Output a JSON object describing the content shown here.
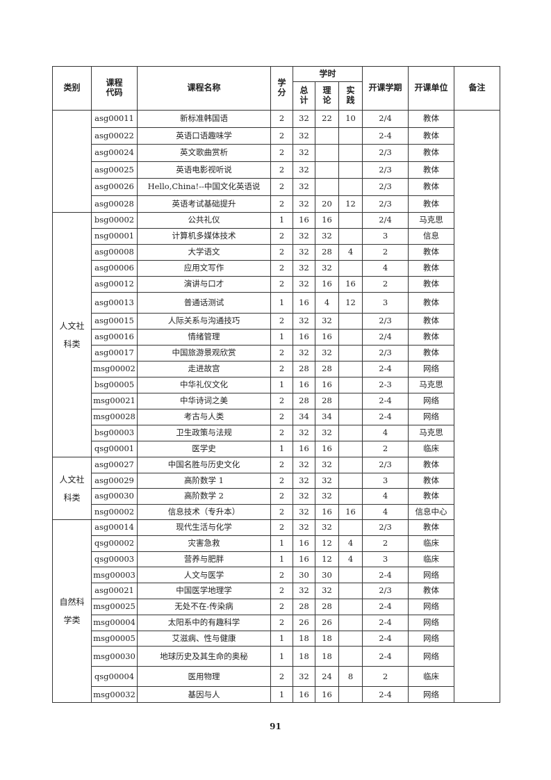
{
  "header": {
    "category": "类别",
    "code": "课程代码",
    "name": "课程名称",
    "credit": "学分",
    "hours": "学时",
    "hours_total": "总计",
    "hours_theory": "理论",
    "hours_practice": "实践",
    "semester": "开课学期",
    "unit": "开课单位",
    "remark": "备注"
  },
  "groups": [
    {
      "category": "",
      "rows": [
        [
          "asg00011",
          "新标准韩国语",
          "2",
          "32",
          "22",
          "10",
          "2/4",
          "教体"
        ],
        [
          "asg00022",
          "英语口语趣味学",
          "2",
          "32",
          "",
          "",
          "2-4",
          "教体"
        ],
        [
          "asg00024",
          "英文歌曲赏析",
          "2",
          "32",
          "",
          "",
          "2/3",
          "教体"
        ],
        [
          "asg00025",
          "英语电影视听说",
          "2",
          "32",
          "",
          "",
          "2/3",
          "教体"
        ],
        [
          "asg00026",
          "Hello,China!--中国文化英语说",
          "2",
          "32",
          "",
          "",
          "2/3",
          "教体"
        ],
        [
          "asg00028",
          "英语考试基础提升",
          "2",
          "32",
          "20",
          "12",
          "2/3",
          "教体"
        ]
      ]
    },
    {
      "category": "人文社科类",
      "rows": [
        [
          "bsg00002",
          "公共礼仪",
          "1",
          "16",
          "16",
          "",
          "2/4",
          "马克思"
        ],
        [
          "nsg00001",
          "计算机多媒体技术",
          "2",
          "32",
          "32",
          "",
          "3",
          "信息"
        ],
        [
          "asg00008",
          "大学语文",
          "2",
          "32",
          "28",
          "4",
          "2",
          "教体"
        ],
        [
          "asg00006",
          "应用文写作",
          "2",
          "32",
          "32",
          "",
          "4",
          "教体"
        ],
        [
          "asg00012",
          "演讲与口才",
          "2",
          "32",
          "16",
          "16",
          "2",
          "教体"
        ],
        [
          "asg00013",
          "普通话测试",
          "1",
          "16",
          "4",
          "12",
          "3",
          "教体"
        ],
        [
          "asg00015",
          "人际关系与沟通技巧",
          "2",
          "32",
          "32",
          "",
          "2/3",
          "教体"
        ],
        [
          "asg00016",
          "情绪管理",
          "1",
          "16",
          "16",
          "",
          "2/4",
          "教体"
        ],
        [
          "asg00017",
          "中国旅游景观欣赏",
          "2",
          "32",
          "32",
          "",
          "2/3",
          "教体"
        ],
        [
          "msg00002",
          "走进故宫",
          "2",
          "28",
          "28",
          "",
          "2-4",
          "网络"
        ],
        [
          "bsg00005",
          "中华礼仪文化",
          "1",
          "16",
          "16",
          "",
          "2-3",
          "马克思"
        ],
        [
          "msg00021",
          "中华诗词之美",
          "2",
          "28",
          "28",
          "",
          "2-4",
          "网络"
        ],
        [
          "msg00028",
          "考古与人类",
          "2",
          "34",
          "34",
          "",
          "2-4",
          "网络"
        ],
        [
          "bsg00003",
          "卫生政策与法规",
          "2",
          "32",
          "32",
          "",
          "4",
          "马克思"
        ],
        [
          "qsg00001",
          "医学史",
          "1",
          "16",
          "16",
          "",
          "2",
          "临床"
        ]
      ]
    },
    {
      "category": "人文社科类",
      "rows": [
        [
          "asg00027",
          "中国名胜与历史文化",
          "2",
          "32",
          "32",
          "",
          "2/3",
          "教体"
        ],
        [
          "asg00029",
          "高阶数学 1",
          "2",
          "32",
          "32",
          "",
          "3",
          "教体"
        ],
        [
          "asg00030",
          "高阶数学 2",
          "2",
          "32",
          "32",
          "",
          "4",
          "教体"
        ],
        [
          "nsg00002",
          "信息技术（专升本）",
          "2",
          "32",
          "16",
          "16",
          "4",
          "信息中心"
        ]
      ]
    },
    {
      "category": "自然科学类",
      "rows": [
        [
          "asg00014",
          "现代生活与化学",
          "2",
          "32",
          "32",
          "",
          "2/3",
          "教体"
        ],
        [
          "qsg00002",
          "灾害急救",
          "1",
          "16",
          "12",
          "4",
          "2",
          "临床"
        ],
        [
          "qsg00003",
          "营养与肥胖",
          "1",
          "16",
          "12",
          "4",
          "3",
          "临床"
        ],
        [
          "msg00003",
          "人文与医学",
          "2",
          "30",
          "30",
          "",
          "2-4",
          "网络"
        ],
        [
          "asg00021",
          "中国医学地理学",
          "2",
          "32",
          "32",
          "",
          "2/3",
          "教体"
        ],
        [
          "msg00025",
          "无处不在-传染病",
          "2",
          "28",
          "28",
          "",
          "2-4",
          "网络"
        ],
        [
          "msg00004",
          "太阳系中的有趣科学",
          "2",
          "26",
          "26",
          "",
          "2-4",
          "网络"
        ],
        [
          "msg00005",
          "艾滋病、性与健康",
          "1",
          "18",
          "18",
          "",
          "2-4",
          "网络"
        ],
        [
          "msg00030",
          "地球历史及其生命的奥秘",
          "1",
          "18",
          "18",
          "",
          "2-4",
          "网络"
        ],
        [
          "qsg00004",
          "医用物理",
          "2",
          "32",
          "24",
          "8",
          "2",
          "临床"
        ],
        [
          "msg00032",
          "基因与人",
          "1",
          "16",
          "16",
          "",
          "2-4",
          "网络"
        ]
      ]
    }
  ],
  "page_number": "91"
}
